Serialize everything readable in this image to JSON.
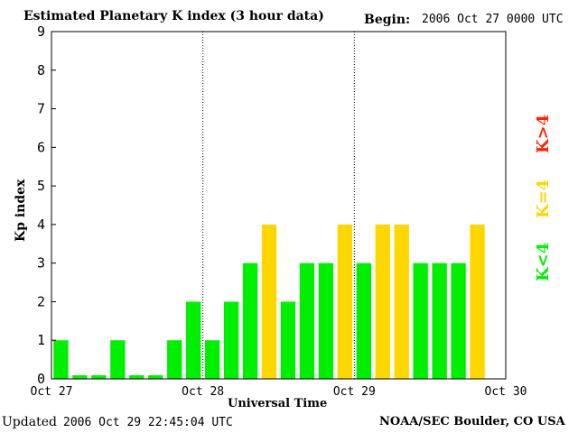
{
  "chart_data": {
    "type": "bar",
    "title": "Estimated Planetary K index (3 hour data)",
    "begin_label": "Begin:",
    "begin_value": "2006 Oct 27 0000 UTC",
    "xlabel": "Universal Time",
    "ylabel": "Kp index",
    "ylim": [
      0,
      9
    ],
    "y_ticks": [
      "0",
      "1",
      "2",
      "3",
      "4",
      "5",
      "6",
      "7",
      "8",
      "9"
    ],
    "x_tick_labels": [
      "Oct 27",
      "Oct 28",
      "Oct 29",
      "Oct 30"
    ],
    "grid": false,
    "day_separators": true,
    "values": [
      1,
      0,
      0,
      1,
      0,
      0,
      1,
      2,
      1,
      2,
      3,
      4,
      2,
      3,
      3,
      4,
      3,
      4,
      4,
      3,
      3,
      3,
      4
    ],
    "bar_colors": {
      "below_4": "#00ee00",
      "equal_4": "#ffd700",
      "above_4": "#ff2200"
    },
    "legend": {
      "above": "K>4",
      "equal": "K=4",
      "below": "K<4"
    }
  },
  "footer": {
    "updated_label": "Updated",
    "updated_value": "2006 Oct 29 22:45:04 UTC",
    "source": "NOAA/SEC Boulder, CO USA"
  }
}
